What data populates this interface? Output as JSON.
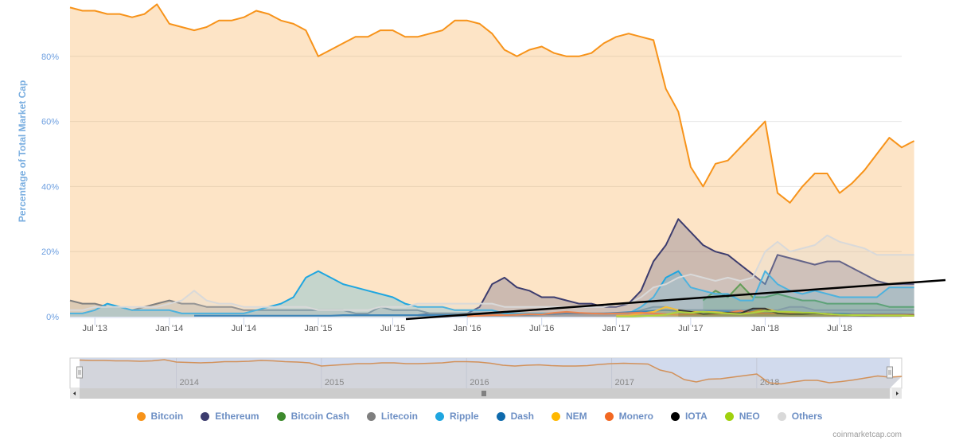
{
  "chart_data": {
    "type": "area",
    "title": "",
    "ylabel": "Percentage of Total Market Cap",
    "xlabel": "",
    "ylim": [
      0,
      100
    ],
    "y_ticks": [
      "0%",
      "20%",
      "40%",
      "60%",
      "80%"
    ],
    "y_tick_values": [
      0,
      20,
      40,
      60,
      80
    ],
    "x_ticks": [
      "Jul '13",
      "Jan '14",
      "Jul '14",
      "Jan '15",
      "Jul '15",
      "Jan '16",
      "Jul '16",
      "Jan '17",
      "Jul '17",
      "Jan '18",
      "Jul '18"
    ],
    "x_tick_dates": [
      "2013-07",
      "2014-01",
      "2014-07",
      "2015-01",
      "2015-07",
      "2016-01",
      "2016-07",
      "2017-01",
      "2017-07",
      "2018-01",
      "2018-07"
    ],
    "x_range": [
      "2013-05",
      "2018-12"
    ],
    "x_step": "month",
    "grid": true,
    "legend_position": "bottom",
    "navigator_labels": [
      "2014",
      "2015",
      "2016",
      "2017",
      "2018"
    ],
    "series": [
      {
        "name": "Bitcoin",
        "color": "#f7931a",
        "start": "2013-05",
        "values": [
          95,
          94,
          94,
          93,
          93,
          92,
          93,
          96,
          90,
          89,
          88,
          89,
          91,
          91,
          92,
          94,
          93,
          91,
          90,
          88,
          80,
          82,
          84,
          86,
          86,
          88,
          88,
          86,
          86,
          87,
          88,
          91,
          91,
          90,
          87,
          82,
          80,
          82,
          83,
          81,
          80,
          80,
          81,
          84,
          86,
          87,
          86,
          85,
          70,
          63,
          46,
          40,
          47,
          48,
          52,
          56,
          60,
          38,
          35,
          40,
          44,
          44,
          38,
          41,
          45,
          50,
          55,
          52,
          54
        ]
      },
      {
        "name": "Ethereum",
        "color": "#3c3c6e",
        "start": "2015-09",
        "values": [
          0.5,
          1,
          1,
          1,
          1,
          3,
          10,
          12,
          9,
          8,
          6,
          6,
          5,
          4,
          4,
          3,
          3,
          4,
          8,
          17,
          22,
          30,
          26,
          22,
          20,
          19,
          16,
          13,
          10,
          19,
          18,
          17,
          16,
          17,
          17,
          15,
          13,
          11,
          10,
          10,
          10
        ]
      },
      {
        "name": "Bitcoin Cash",
        "color": "#3d8a2d",
        "start": "2017-08",
        "values": [
          5,
          8,
          6,
          10,
          6,
          6,
          7,
          6,
          5,
          5,
          4,
          4,
          4,
          4,
          4,
          3,
          3,
          3
        ]
      },
      {
        "name": "Litecoin",
        "color": "#7f7f7f",
        "start": "2013-05",
        "values": [
          5,
          4,
          4,
          3,
          3,
          2,
          3,
          4,
          5,
          4,
          4,
          3,
          3,
          3,
          2,
          2,
          2,
          2,
          2,
          2,
          2,
          2,
          2,
          1,
          1,
          3,
          2,
          2,
          2,
          1,
          1,
          1,
          1,
          1,
          1,
          1,
          1,
          1,
          1,
          1,
          1,
          1,
          1,
          1,
          1,
          1,
          2,
          3,
          3,
          2,
          2,
          2,
          2,
          2,
          2,
          2,
          2,
          2,
          3,
          3,
          2,
          2,
          2,
          2,
          2,
          2,
          2,
          2,
          2
        ]
      },
      {
        "name": "Ripple",
        "color": "#1fa6e0",
        "start": "2013-05",
        "values": [
          1,
          1,
          2,
          4,
          3,
          2,
          2,
          2,
          2,
          1,
          1,
          1,
          1,
          1,
          1,
          2,
          3,
          4,
          6,
          12,
          14,
          12,
          10,
          9,
          8,
          7,
          6,
          4,
          3,
          3,
          3,
          2,
          2,
          2,
          2,
          1,
          1,
          1,
          1,
          1,
          1,
          1,
          1,
          1,
          1,
          1,
          3,
          6,
          12,
          14,
          9,
          8,
          7,
          7,
          5,
          5,
          14,
          10,
          8,
          7,
          8,
          7,
          6,
          6,
          6,
          6,
          9,
          9,
          9
        ]
      },
      {
        "name": "Dash",
        "color": "#0e6aac",
        "start": "2014-03",
        "values": [
          0.3,
          0.3,
          0.3,
          0.3,
          0.3,
          0.3,
          0.3,
          0.3,
          0.3,
          0.3,
          0.3,
          0.3,
          0.5,
          0.5,
          0.5,
          0.5,
          0.5,
          0.5,
          0.5,
          0.5,
          0.5,
          0.5,
          0.5,
          0.5,
          0.5,
          0.5,
          0.6,
          0.6,
          0.7,
          0.8,
          1,
          1,
          1,
          1,
          1.2,
          1.4,
          1.6,
          1.8,
          2,
          1.8,
          1.5,
          1.5,
          1.7,
          1.6,
          1.5,
          1.6,
          1.8,
          1.2,
          1.3,
          1.2,
          1,
          1,
          0.9,
          0.8,
          0.8,
          0.8,
          0.8,
          0.8,
          0.7
        ]
      },
      {
        "name": "NEM",
        "color": "#ffb800",
        "start": "2017-01",
        "values": [
          0.3,
          0.4,
          1,
          1.5,
          3,
          2,
          1.5,
          1.5,
          1.4,
          1.2,
          1,
          1.5,
          2.5,
          1.5,
          1.2,
          1,
          1,
          0.9,
          0.6,
          0.5,
          0.5,
          0.4,
          0.3,
          0.3,
          0.3
        ]
      },
      {
        "name": "Monero",
        "color": "#f26822",
        "start": "2016-01",
        "values": [
          0.2,
          0.3,
          0.5,
          0.5,
          0.6,
          0.8,
          0.7,
          1.2,
          1.5,
          1.2,
          1,
          0.9,
          1,
          1.1,
          1.3,
          1,
          0.8,
          0.6,
          0.8,
          0.8,
          0.8,
          1.2,
          1.8,
          1.2,
          1,
          1,
          0.9,
          1,
          1.1,
          0.7,
          0.5,
          0.6,
          0.6,
          0.6,
          0.6,
          0.6,
          0.6
        ]
      },
      {
        "name": "IOTA",
        "color": "#000000",
        "start": "2017-06",
        "values": [
          2,
          1.5,
          0.8,
          1,
          1.2,
          1,
          2.5,
          2.5,
          1,
          0.8,
          0.8,
          1,
          0.8,
          0.6,
          0.5,
          0.4,
          0.4,
          0.4,
          0.4,
          0.4
        ]
      },
      {
        "name": "NEO",
        "color": "#a0d10e",
        "start": "2017-01",
        "values": [
          0.1,
          0.1,
          0.2,
          0.3,
          0.6,
          1.5,
          1.2,
          1.5,
          1.2,
          1,
          0.8,
          1.2,
          1.8,
          1.6,
          1.5,
          1.3,
          1.2,
          0.8,
          0.6,
          0.5,
          0.5,
          0.4,
          0.4,
          0.4,
          0.3
        ]
      },
      {
        "name": "Others",
        "color": "#d9d9d9",
        "start": "2013-05",
        "values": [
          2,
          2,
          3,
          3,
          3,
          3,
          3,
          3,
          4,
          5,
          8,
          5,
          4,
          4,
          3,
          3,
          3,
          3,
          3,
          3,
          2,
          2,
          2,
          2,
          2,
          3,
          3,
          3,
          4,
          4,
          4,
          4,
          4,
          4,
          4,
          3,
          3,
          3,
          3,
          3,
          3,
          3,
          3,
          3,
          4,
          4,
          6,
          9,
          10,
          12,
          13,
          12,
          11,
          12,
          11,
          12,
          20,
          23,
          20,
          21,
          22,
          25,
          23,
          22,
          21,
          19,
          19,
          19,
          19
        ]
      }
    ]
  },
  "credit": "coinmarketcap.com"
}
